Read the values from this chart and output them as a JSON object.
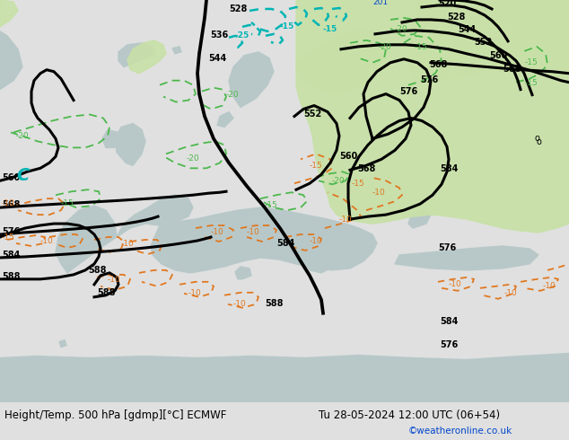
{
  "title_left": "Height/Temp. 500 hPa [gdmp][°C] ECMWF",
  "title_right": "Tu 28-05-2024 12:00 UTC (06+54)",
  "copyright": "©weatheronline.co.uk",
  "sea_color": "#d2dfe8",
  "land_color": "#b8c8c8",
  "green_fill": "#c8e0a8",
  "bottom_bg": "#e0e0e0",
  "black_line": "#000000",
  "green_dash": "#4db84d",
  "orange_dash": "#e07820",
  "cyan_dash": "#00b4b4",
  "label_black": "#000000",
  "label_blue": "#0044cc",
  "font_title": 8.5,
  "font_copy": 7.5,
  "lw_thick": 2.2,
  "lw_thin": 1.3
}
